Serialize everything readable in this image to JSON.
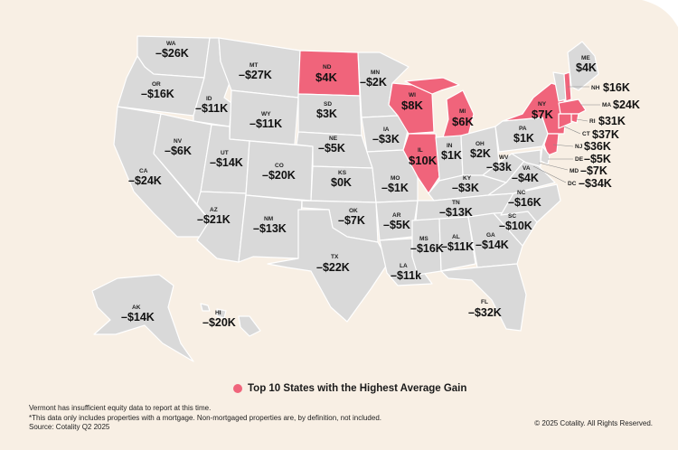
{
  "colors": {
    "background": "#f8efe4",
    "state_default": "#d9d9d9",
    "state_highlight": "#f0647b",
    "border": "#ffffff"
  },
  "legend": {
    "label": "Top 10 States with the Highest Average Gain"
  },
  "footnotes": {
    "line1": "Vermont has insufficient equity data to report at this time.",
    "line2": "*This data only includes properties with a mortgage. Non-mortgaged properties are, by definition, not included.",
    "line3": "Source: Cotality Q2 2025"
  },
  "copyright": "© 2025 Cotality. All Rights Reserved.",
  "states": {
    "WA": {
      "abbr": "WA",
      "value": "–$26K",
      "highlight": false
    },
    "OR": {
      "abbr": "OR",
      "value": "–$16K",
      "highlight": false
    },
    "CA": {
      "abbr": "CA",
      "value": "–$24K",
      "highlight": false
    },
    "ID": {
      "abbr": "ID",
      "value": "–$11K",
      "highlight": false
    },
    "NV": {
      "abbr": "NV",
      "value": "–$6K",
      "highlight": false
    },
    "MT": {
      "abbr": "MT",
      "value": "–$27K",
      "highlight": false
    },
    "WY": {
      "abbr": "WY",
      "value": "–$11K",
      "highlight": false
    },
    "UT": {
      "abbr": "UT",
      "value": "–$14K",
      "highlight": false
    },
    "AZ": {
      "abbr": "AZ",
      "value": "–$21K",
      "highlight": false
    },
    "CO": {
      "abbr": "CO",
      "value": "–$20K",
      "highlight": false
    },
    "NM": {
      "abbr": "NM",
      "value": "–$13K",
      "highlight": false
    },
    "ND": {
      "abbr": "ND",
      "value": "$4K",
      "highlight": true
    },
    "SD": {
      "abbr": "SD",
      "value": "$3K",
      "highlight": false
    },
    "NE": {
      "abbr": "NE",
      "value": "–$5K",
      "highlight": false
    },
    "KS": {
      "abbr": "KS",
      "value": "$0K",
      "highlight": false
    },
    "OK": {
      "abbr": "OK",
      "value": "–$7K",
      "highlight": false
    },
    "TX": {
      "abbr": "TX",
      "value": "–$22K",
      "highlight": false
    },
    "MN": {
      "abbr": "MN",
      "value": "–$2K",
      "highlight": false
    },
    "IA": {
      "abbr": "IA",
      "value": "–$3K",
      "highlight": false
    },
    "MO": {
      "abbr": "MO",
      "value": "–$1K",
      "highlight": false
    },
    "AR": {
      "abbr": "AR",
      "value": "–$5K",
      "highlight": false
    },
    "LA": {
      "abbr": "LA",
      "value": "–$11k",
      "highlight": false
    },
    "WI": {
      "abbr": "WI",
      "value": "$8K",
      "highlight": true
    },
    "IL": {
      "abbr": "IL",
      "value": "$10K",
      "highlight": true
    },
    "MI": {
      "abbr": "MI",
      "value": "$6K",
      "highlight": true
    },
    "IN": {
      "abbr": "IN",
      "value": "$1K",
      "highlight": false
    },
    "OH": {
      "abbr": "OH",
      "value": "$2K",
      "highlight": false
    },
    "KY": {
      "abbr": "KY",
      "value": "–$3K",
      "highlight": false
    },
    "TN": {
      "abbr": "TN",
      "value": "–$13K",
      "highlight": false
    },
    "MS": {
      "abbr": "MS",
      "value": "–$16K",
      "highlight": false
    },
    "AL": {
      "abbr": "AL",
      "value": "–$11K",
      "highlight": false
    },
    "GA": {
      "abbr": "GA",
      "value": "–$14K",
      "highlight": false
    },
    "FL": {
      "abbr": "FL",
      "value": "–$32K",
      "highlight": false
    },
    "SC": {
      "abbr": "SC",
      "value": "–$10K",
      "highlight": false
    },
    "NC": {
      "abbr": "NC",
      "value": "–$16K",
      "highlight": false
    },
    "VA": {
      "abbr": "VA",
      "value": "–$4K",
      "highlight": false
    },
    "WV": {
      "abbr": "WV",
      "value": "–$3k",
      "highlight": false
    },
    "PA": {
      "abbr": "PA",
      "value": "$1K",
      "highlight": false
    },
    "NY": {
      "abbr": "NY",
      "value": "$7K",
      "highlight": true
    },
    "ME": {
      "abbr": "ME",
      "value": "$4K",
      "highlight": false
    },
    "NH": {
      "abbr": "NH",
      "value": "$16K",
      "highlight": true
    },
    "MA": {
      "abbr": "MA",
      "value": "$24K",
      "highlight": true
    },
    "RI": {
      "abbr": "RI",
      "value": "$31K",
      "highlight": true
    },
    "CT": {
      "abbr": "CT",
      "value": "$37K",
      "highlight": true
    },
    "NJ": {
      "abbr": "NJ",
      "value": "$36K",
      "highlight": true
    },
    "DE": {
      "abbr": "DE",
      "value": "–$5K",
      "highlight": false
    },
    "MD": {
      "abbr": "MD",
      "value": "–$7K",
      "highlight": false
    },
    "DC": {
      "abbr": "DC",
      "value": "–$34K",
      "highlight": false
    },
    "AK": {
      "abbr": "AK",
      "value": "–$14K",
      "highlight": false
    },
    "HI": {
      "abbr": "HI",
      "value": "–$20K",
      "highlight": false
    }
  }
}
